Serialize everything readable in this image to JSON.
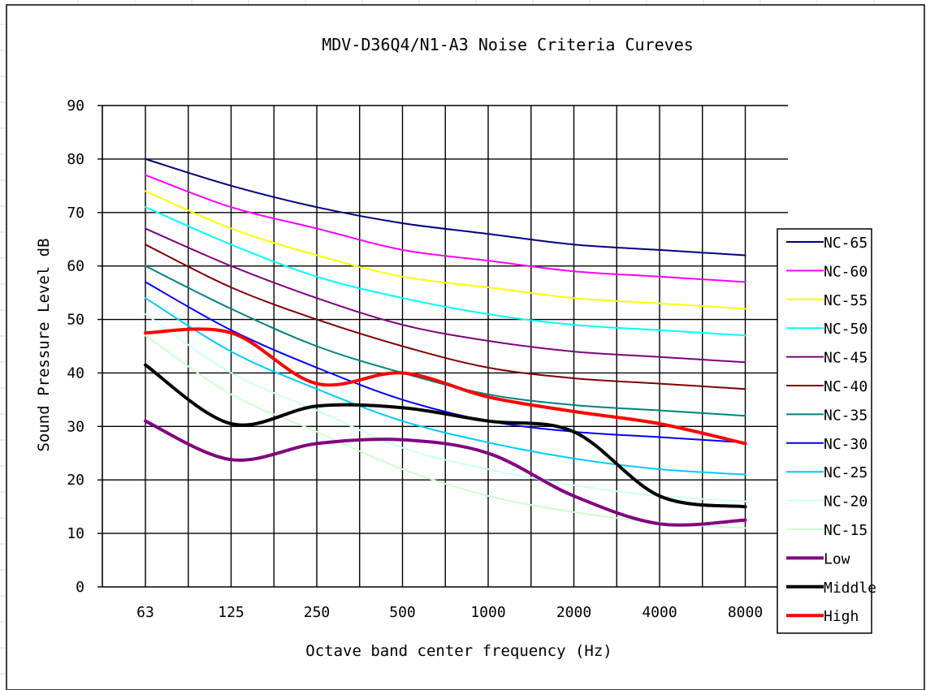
{
  "chart_data": {
    "type": "line",
    "title": "MDV-D36Q4/N1-A3  Noise Criteria Cureves",
    "xlabel": "Octave band center frequency (Hz)",
    "ylabel": "Sound Pressure Level dB",
    "categories": [
      "63",
      "125",
      "250",
      "500",
      "1000",
      "2000",
      "4000",
      "8000"
    ],
    "x": [
      63,
      125,
      250,
      500,
      1000,
      2000,
      4000,
      8000
    ],
    "ylim": [
      0,
      90
    ],
    "yticks": [
      0,
      10,
      20,
      30,
      40,
      50,
      60,
      70,
      80,
      90
    ],
    "grid": true,
    "legend_position": "right",
    "series": [
      {
        "name": "NC-65",
        "color": "#00007f",
        "width": 2,
        "values": [
          80,
          75,
          71,
          68,
          66,
          64,
          63,
          62
        ]
      },
      {
        "name": "NC-60",
        "color": "#ff00ff",
        "width": 2,
        "values": [
          77,
          71,
          67,
          63,
          61,
          59,
          58,
          57
        ]
      },
      {
        "name": "NC-55",
        "color": "#ffff00",
        "width": 2,
        "values": [
          74,
          67,
          62,
          58,
          56,
          54,
          53,
          52
        ]
      },
      {
        "name": "NC-50",
        "color": "#00ffff",
        "width": 2,
        "values": [
          71,
          64,
          58,
          54,
          51,
          49,
          48,
          47
        ]
      },
      {
        "name": "NC-45",
        "color": "#800080",
        "width": 2,
        "values": [
          67,
          60,
          54,
          49,
          46,
          44,
          43,
          42
        ]
      },
      {
        "name": "NC-40",
        "color": "#800000",
        "width": 2,
        "values": [
          64,
          56,
          50,
          45,
          41,
          39,
          38,
          37
        ]
      },
      {
        "name": "NC-35",
        "color": "#008080",
        "width": 2,
        "values": [
          60,
          52,
          45,
          40,
          36,
          34,
          33,
          32
        ]
      },
      {
        "name": "NC-30",
        "color": "#0000ff",
        "width": 2,
        "values": [
          57,
          48,
          41,
          35,
          31,
          29,
          28,
          27
        ]
      },
      {
        "name": "NC-25",
        "color": "#00ccff",
        "width": 2,
        "values": [
          54,
          44,
          37,
          31,
          27,
          24,
          22,
          21
        ]
      },
      {
        "name": "NC-20",
        "color": "#ccffff",
        "width": 2,
        "values": [
          51,
          40,
          33,
          26,
          22,
          19,
          17,
          16
        ]
      },
      {
        "name": "NC-15",
        "color": "#ccffcc",
        "width": 2,
        "values": [
          47,
          36,
          29,
          22,
          17,
          14,
          12,
          11
        ]
      },
      {
        "name": "Low",
        "color": "#800080",
        "width": 4,
        "values": [
          31,
          23.8,
          26.8,
          27.5,
          25,
          17,
          11.8,
          12.5
        ]
      },
      {
        "name": "Middle",
        "color": "#000000",
        "width": 4,
        "values": [
          41.5,
          30.5,
          33.8,
          33.5,
          31,
          29,
          17,
          15
        ]
      },
      {
        "name": "High",
        "color": "#ff0000",
        "width": 4,
        "values": [
          47.5,
          47.5,
          38,
          40,
          35.5,
          32.8,
          30.5,
          26.8
        ]
      }
    ]
  }
}
